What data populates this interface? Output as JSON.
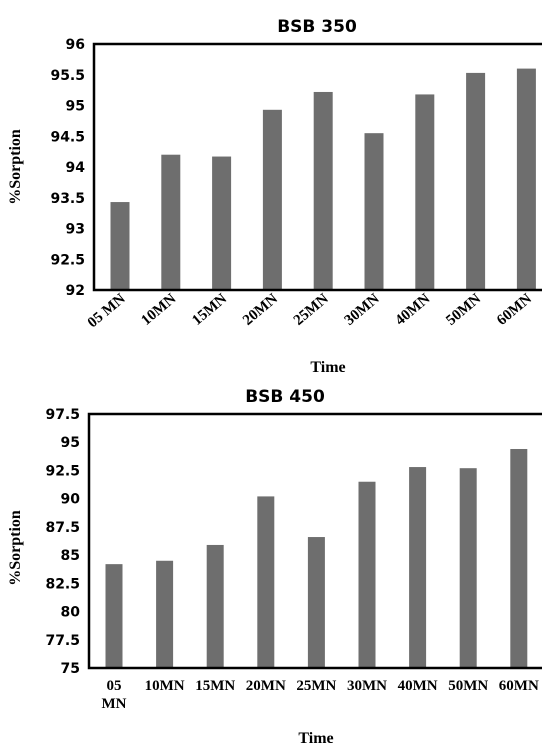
{
  "chart_data": [
    {
      "type": "bar",
      "title": "BSB 350",
      "xlabel": "Time",
      "ylabel": "%Sorption",
      "categories": [
        "05 MN",
        "10MN",
        "15MN",
        "20MN",
        "25MN",
        "30MN",
        "40MN",
        "50MN",
        "60MN"
      ],
      "values": [
        93.43,
        94.2,
        94.17,
        94.93,
        95.22,
        94.55,
        95.18,
        95.53,
        95.6
      ],
      "ylim": [
        92,
        96
      ],
      "yticks": [
        "92",
        "92.5",
        "93",
        "93.5",
        "94",
        "94.5",
        "95",
        "95.5",
        "96"
      ],
      "bar_color": "#6e6e6e",
      "grid": false,
      "legend": "none"
    },
    {
      "type": "bar",
      "title": "BSB 450",
      "xlabel": "Time",
      "ylabel": "%Sorption",
      "categories": [
        "05 MN",
        "10MN",
        "15MN",
        "20MN",
        "25MN",
        "30MN",
        "40MN",
        "50MN",
        "60MN"
      ],
      "values": [
        84.2,
        84.5,
        85.9,
        90.2,
        86.6,
        91.5,
        92.8,
        92.7,
        94.4
      ],
      "ylim": [
        75,
        97.5
      ],
      "yticks": [
        "75",
        "77.5",
        "80",
        "82.5",
        "85",
        "87.5",
        "90",
        "92.5",
        "95",
        "97.5"
      ],
      "bar_color": "#6e6e6e",
      "grid": false,
      "legend": "none"
    }
  ]
}
